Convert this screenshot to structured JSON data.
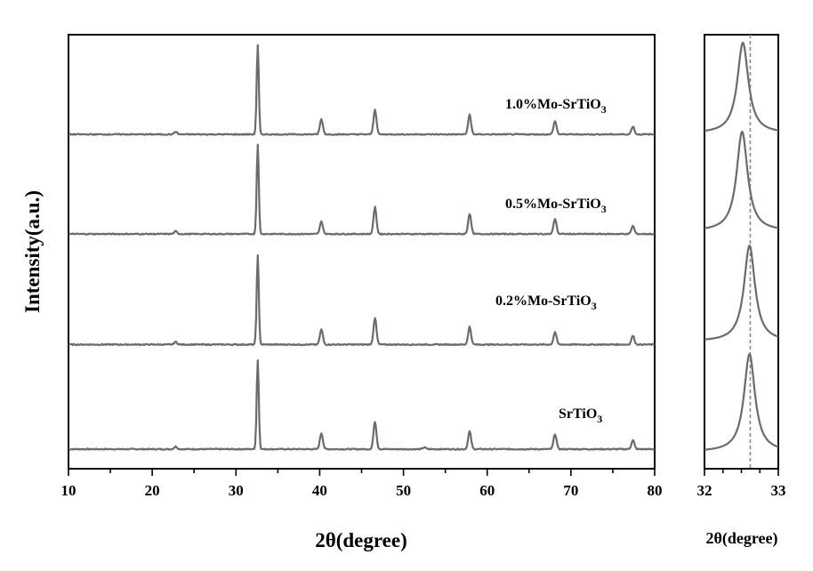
{
  "chart_data": [
    {
      "type": "line",
      "xlabel": "2θ(degree)",
      "ylabel": "Intensity(a.u.)",
      "xlim": [
        10,
        80
      ],
      "xticks": [
        10,
        20,
        30,
        40,
        50,
        60,
        70,
        80
      ],
      "y_axis_ticks": false,
      "legend": "none",
      "series": [
        {
          "name": "SrTiO3",
          "label_main": "SrTiO",
          "label_sub": "3",
          "baseline": 0,
          "peaks": [
            {
              "x": 22.8,
              "h": 3
            },
            {
              "x": 32.6,
              "h": 100
            },
            {
              "x": 40.2,
              "h": 18
            },
            {
              "x": 46.6,
              "h": 31
            },
            {
              "x": 52.5,
              "h": 2
            },
            {
              "x": 57.9,
              "h": 20
            },
            {
              "x": 68.1,
              "h": 17
            },
            {
              "x": 77.4,
              "h": 10
            }
          ]
        },
        {
          "name": "0.2%Mo-SrTiO3",
          "label_main": "0.2%Mo-SrTiO",
          "label_sub": "3",
          "baseline": 105,
          "peaks": [
            {
              "x": 22.8,
              "h": 3
            },
            {
              "x": 32.6,
              "h": 100
            },
            {
              "x": 40.2,
              "h": 17
            },
            {
              "x": 46.6,
              "h": 30
            },
            {
              "x": 57.9,
              "h": 20
            },
            {
              "x": 68.1,
              "h": 14
            },
            {
              "x": 77.4,
              "h": 10
            }
          ]
        },
        {
          "name": "0.5%Mo-SrTiO3",
          "label_main": "0.5%Mo-SrTiO",
          "label_sub": "3",
          "baseline": 216,
          "peaks": [
            {
              "x": 22.8,
              "h": 3
            },
            {
              "x": 32.6,
              "h": 100
            },
            {
              "x": 40.2,
              "h": 14
            },
            {
              "x": 46.6,
              "h": 30
            },
            {
              "x": 57.9,
              "h": 23
            },
            {
              "x": 68.1,
              "h": 17
            },
            {
              "x": 77.4,
              "h": 9
            }
          ]
        },
        {
          "name": "1.0%Mo-SrTiO3",
          "label_main": "1.0%Mo-SrTiO",
          "label_sub": "3",
          "baseline": 316,
          "peaks": [
            {
              "x": 22.8,
              "h": 3
            },
            {
              "x": 32.6,
              "h": 100
            },
            {
              "x": 40.2,
              "h": 17
            },
            {
              "x": 46.6,
              "h": 28
            },
            {
              "x": 57.9,
              "h": 22
            },
            {
              "x": 68.1,
              "h": 15
            },
            {
              "x": 77.4,
              "h": 9
            }
          ]
        }
      ]
    },
    {
      "type": "line",
      "xlabel": "2θ(degree)",
      "xlim": [
        32,
        33
      ],
      "xticks": [
        32,
        33
      ],
      "reference_line_x": 32.62,
      "series": [
        {
          "name": "SrTiO3",
          "peak_x": 32.61
        },
        {
          "name": "0.2%Mo-SrTiO3",
          "peak_x": 32.61
        },
        {
          "name": "0.5%Mo-SrTiO3",
          "peak_x": 32.51
        },
        {
          "name": "1.0%Mo-SrTiO3",
          "peak_x": 32.52
        }
      ]
    }
  ]
}
